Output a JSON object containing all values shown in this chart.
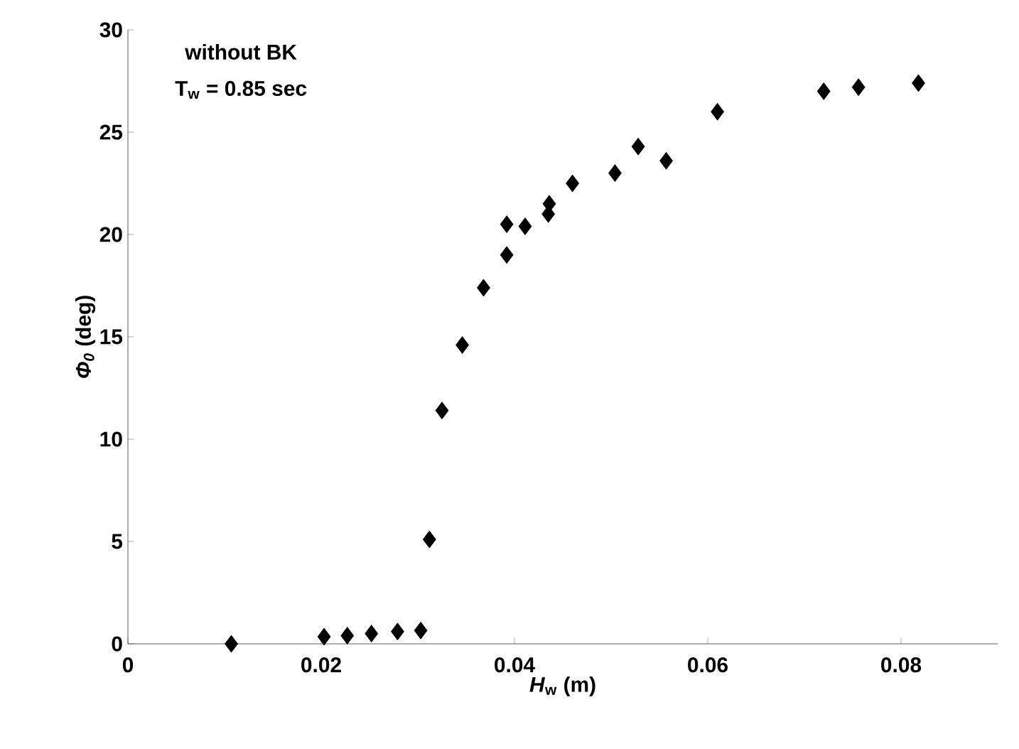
{
  "chart_data": {
    "type": "scatter",
    "xlabel": "*H*$_{w}$ (m)",
    "ylabel": "*Φ$_{0}$* (deg)",
    "annotations": [
      "without BK",
      "T$_{w}$ = 0.85 sec"
    ],
    "series": [
      {
        "color": "#000000",
        "x": [
          0.0107,
          0.0203,
          0.0227,
          0.0252,
          0.0279,
          0.0303,
          0.0312,
          0.0325,
          0.0346,
          0.0368,
          0.0392,
          0.0392,
          0.0411,
          0.0435,
          0.0436,
          0.046,
          0.0504,
          0.0528,
          0.0557,
          0.061,
          0.072,
          0.0756,
          0.0818
        ],
        "values": [
          0,
          0.35,
          0.4,
          0.5,
          0.6,
          0.65,
          5.1,
          11.4,
          14.6,
          17.4,
          19.0,
          20.5,
          20.4,
          21.0,
          21.5,
          22.5,
          23.0,
          24.3,
          23.6,
          26.0,
          27.0,
          27.2,
          27.4
        ]
      }
    ],
    "xlim": [
      0,
      0.09
    ],
    "ylim": [
      0,
      30
    ],
    "xticks": [
      0,
      0.02,
      0.04,
      0.06,
      0.08
    ],
    "yticks": [
      0,
      5,
      10,
      15,
      20,
      25,
      30
    ],
    "marker": "diamond",
    "grid": false
  }
}
